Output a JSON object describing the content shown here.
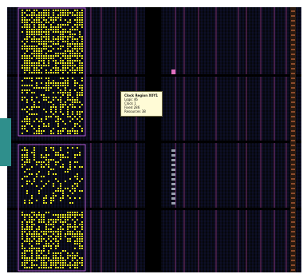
{
  "tooltip": {
    "title": "Clock Region X0Y1",
    "lines": [
      "Logic 46",
      "Clock 1",
      "Fixed 286",
      "Resources 38"
    ]
  },
  "colors": {
    "background": "#06070c",
    "grid_line": "#1a1f55",
    "column_magenta": "#7a2f6e",
    "logic_yellow": "#f0f01e",
    "pblock_border": "#b35cd6",
    "side_tab": "#2f8f8c",
    "tooltip_bg": "#fffbd6"
  }
}
